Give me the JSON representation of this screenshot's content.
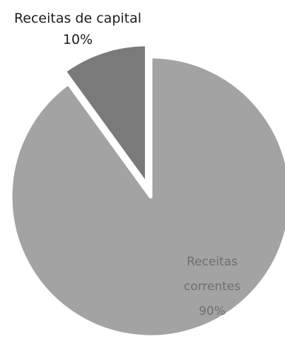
{
  "chart_data": {
    "type": "pie",
    "title": "",
    "slices": [
      {
        "label": "Receitas correntes",
        "value": 90,
        "value_label": "90%",
        "color": "#a3a3a3"
      },
      {
        "label": "Receitas de capital",
        "value": 10,
        "value_label": "10%",
        "color": "#7a7a7a",
        "exploded": true
      }
    ],
    "data_labels": {
      "capital": {
        "name": "Receitas de capital",
        "value": "10%"
      },
      "correntes": {
        "lines": [
          "Receitas",
          "correntes"
        ],
        "value": "90%"
      }
    },
    "legend": "none"
  }
}
